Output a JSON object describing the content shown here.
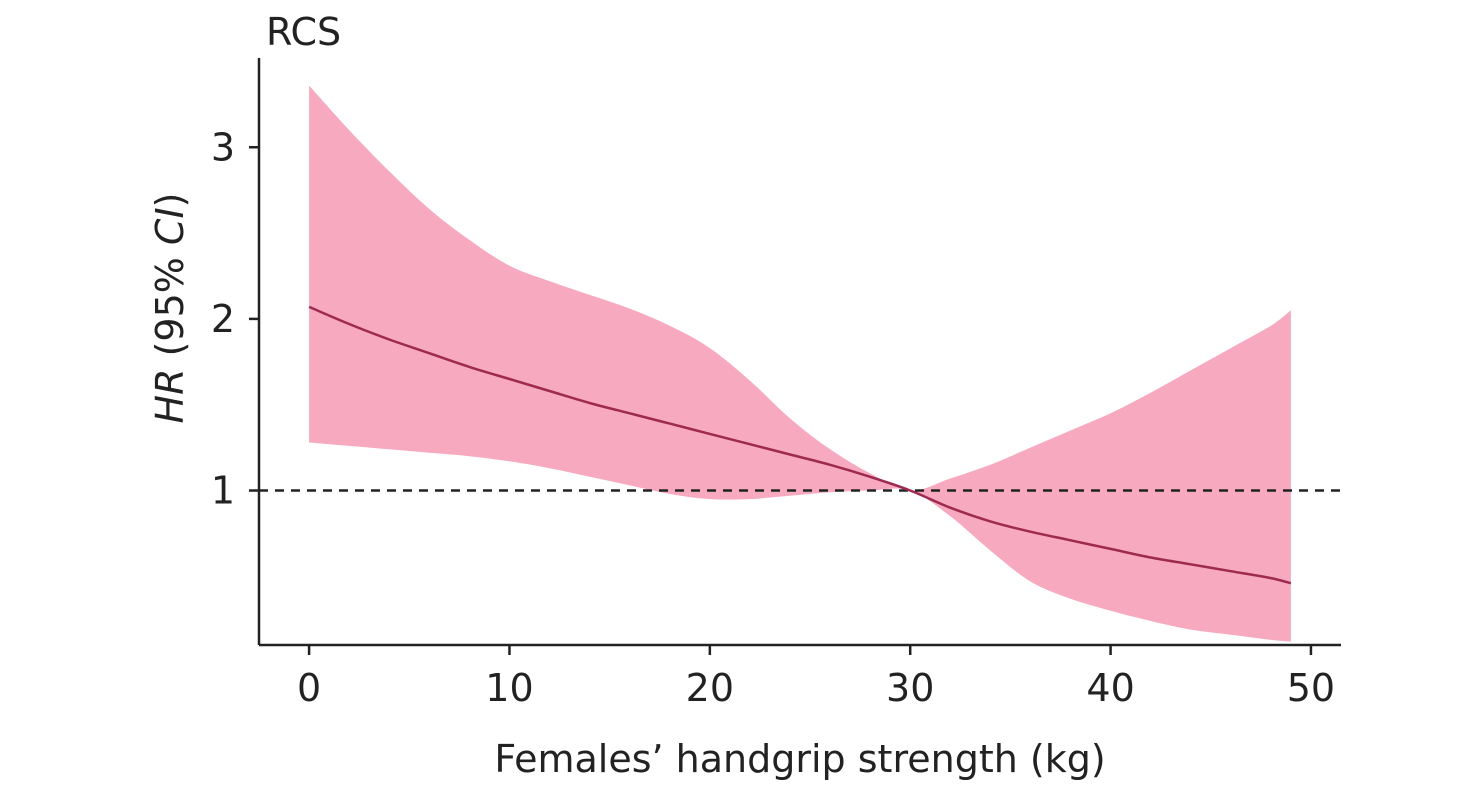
{
  "chart_data": {
    "type": "line",
    "title": "RCS",
    "xlabel": "Females’ handgrip strength (kg)",
    "ylabel": {
      "italic1": "HR",
      "mid": " (95% ",
      "italic2": "CI",
      "end": ")"
    },
    "xlim": [
      -2.5,
      51.5
    ],
    "ylim": [
      0.1,
      3.52
    ],
    "xticks": [
      0,
      10,
      20,
      30,
      40,
      50
    ],
    "yticks": [
      1,
      2,
      3
    ],
    "reference_line": {
      "y": 1,
      "style": "dashed"
    },
    "grid": false,
    "colors": {
      "band": "#F7A9C0",
      "line": "#9E2A4F",
      "axis": "#222222",
      "reference": "#222222"
    },
    "series": [
      {
        "x": [
          0,
          2,
          4,
          6,
          8,
          10,
          12,
          14,
          16,
          18,
          20,
          22,
          24,
          26,
          28,
          30,
          32,
          34,
          36,
          38,
          40,
          42,
          44,
          46,
          48,
          49
        ],
        "y": [
          2.07,
          1.97,
          1.88,
          1.8,
          1.72,
          1.65,
          1.58,
          1.51,
          1.45,
          1.39,
          1.33,
          1.27,
          1.21,
          1.15,
          1.08,
          1.0,
          0.9,
          0.82,
          0.76,
          0.71,
          0.66,
          0.61,
          0.57,
          0.53,
          0.49,
          0.46
        ],
        "lower": [
          1.28,
          1.26,
          1.24,
          1.22,
          1.2,
          1.17,
          1.13,
          1.08,
          1.03,
          0.98,
          0.95,
          0.95,
          0.97,
          0.99,
          1.0,
          1.0,
          0.85,
          0.65,
          0.47,
          0.37,
          0.3,
          0.24,
          0.19,
          0.16,
          0.13,
          0.12
        ],
        "upper": [
          3.36,
          3.1,
          2.86,
          2.64,
          2.46,
          2.31,
          2.22,
          2.14,
          2.06,
          1.96,
          1.83,
          1.64,
          1.42,
          1.24,
          1.1,
          1.0,
          1.07,
          1.15,
          1.25,
          1.35,
          1.45,
          1.57,
          1.7,
          1.83,
          1.96,
          2.05
        ]
      }
    ]
  }
}
